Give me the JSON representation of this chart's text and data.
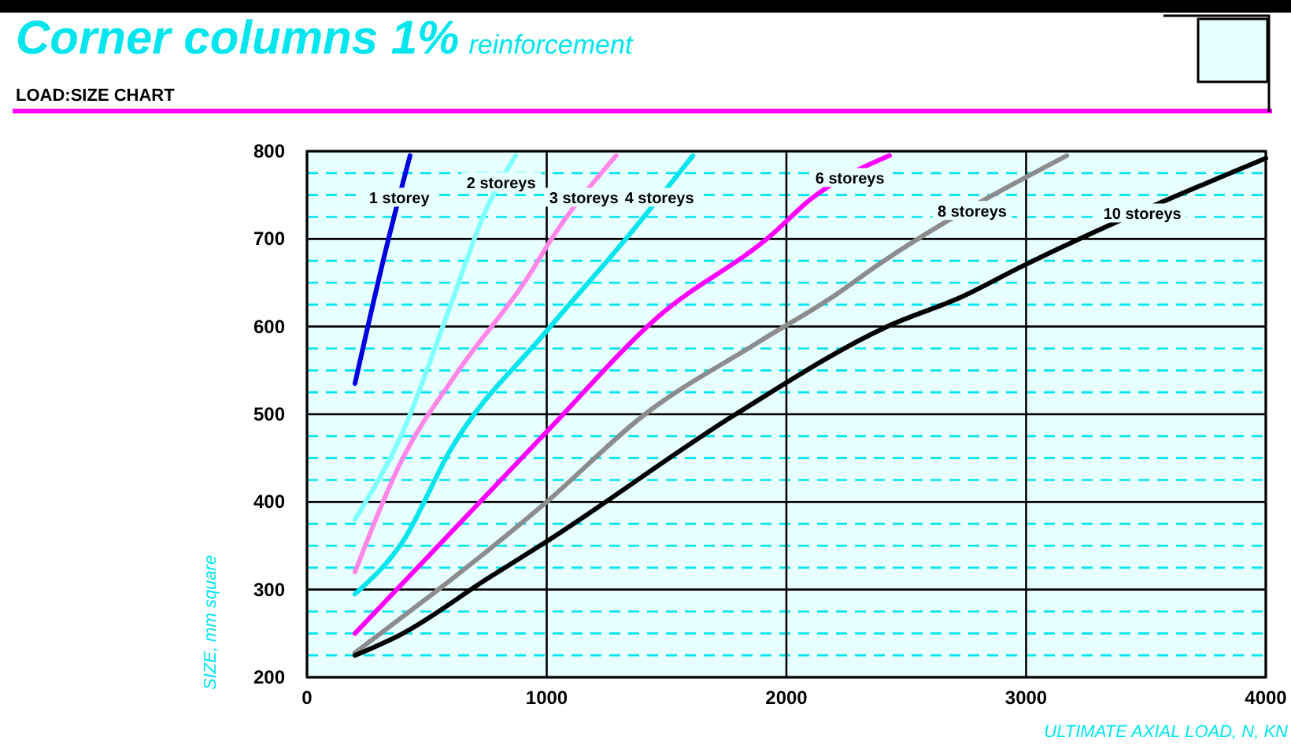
{
  "chart_data": {
    "type": "line",
    "title": "Corner columns 1%",
    "subtitle": "reinforcement",
    "annotations": [
      "LOAD:SIZE CHART"
    ],
    "xlabel": "ULTIMATE AXIAL LOAD, N, KN",
    "ylabel": "SIZE, mm square",
    "xlim": [
      0,
      4000
    ],
    "xticks": [
      0,
      1000,
      2000,
      3000,
      4000
    ],
    "ylim": [
      200,
      800
    ],
    "yticks": [
      200,
      {
        "value": 225,
        "label": null
      },
      {
        "value": 250,
        "label": null
      },
      {
        "value": 275,
        "label": null
      },
      300,
      {
        "value": 325,
        "label": null
      },
      {
        "value": 350,
        "label": null
      },
      {
        "value": 375,
        "label": null
      },
      400,
      {
        "value": 425,
        "label": null
      },
      {
        "value": 450,
        "label": null
      },
      {
        "value": 475,
        "label": null
      },
      500,
      {
        "value": 525,
        "label": null
      },
      {
        "value": 550,
        "label": null
      },
      {
        "value": 575,
        "label": null
      },
      600,
      {
        "value": 625,
        "label": null
      },
      {
        "value": 650,
        "label": null
      },
      {
        "value": 675,
        "label": null
      },
      700,
      {
        "value": 725,
        "label": null
      },
      {
        "value": 750,
        "label": null
      },
      {
        "value": 775,
        "label": null
      },
      800
    ],
    "grid": true,
    "marker": "none",
    "line_style": "solid",
    "series": [
      {
        "name": "1 storey",
        "color": "#0000e0",
        "x": [
          200,
          340,
          430
        ],
        "values": [
          535,
          700,
          795
        ]
      },
      {
        "name": "2 storeys",
        "color": "#80ffff",
        "x": [
          200,
          400,
          580,
          750,
          870
        ],
        "values": [
          380,
          480,
          610,
          735,
          795
        ]
      },
      {
        "name": "3 storeys",
        "color": "#ff88e8",
        "x": [
          200,
          400,
          620,
          930,
          1020,
          1290
        ],
        "values": [
          320,
          450,
          545,
          660,
          700,
          795
        ]
      },
      {
        "name": "4 storeys",
        "color": "#00e5ee",
        "x": [
          200,
          400,
          600,
          1000,
          1330,
          1610
        ],
        "values": [
          295,
          355,
          460,
          595,
          700,
          795
        ]
      },
      {
        "name": "6 storeys",
        "color": "#ff00ff",
        "x": [
          200,
          1000,
          1460,
          1940,
          2100,
          2430
        ],
        "values": [
          250,
          480,
          610,
          705,
          745,
          795
        ]
      },
      {
        "name": "8 storeys",
        "color": "#8c8c8c",
        "x": [
          200,
          1000,
          1410,
          1870,
          2210,
          2380,
          3170
        ],
        "values": [
          228,
          400,
          500,
          580,
          637,
          670,
          795
        ]
      },
      {
        "name": "10 storeys",
        "color": "#000000",
        "x": [
          200,
          400,
          750,
          1000,
          1800,
          2420,
          2740,
          2970,
          4000
        ],
        "values": [
          225,
          250,
          312,
          355,
          502,
          600,
          635,
          667,
          792
        ]
      }
    ]
  }
}
